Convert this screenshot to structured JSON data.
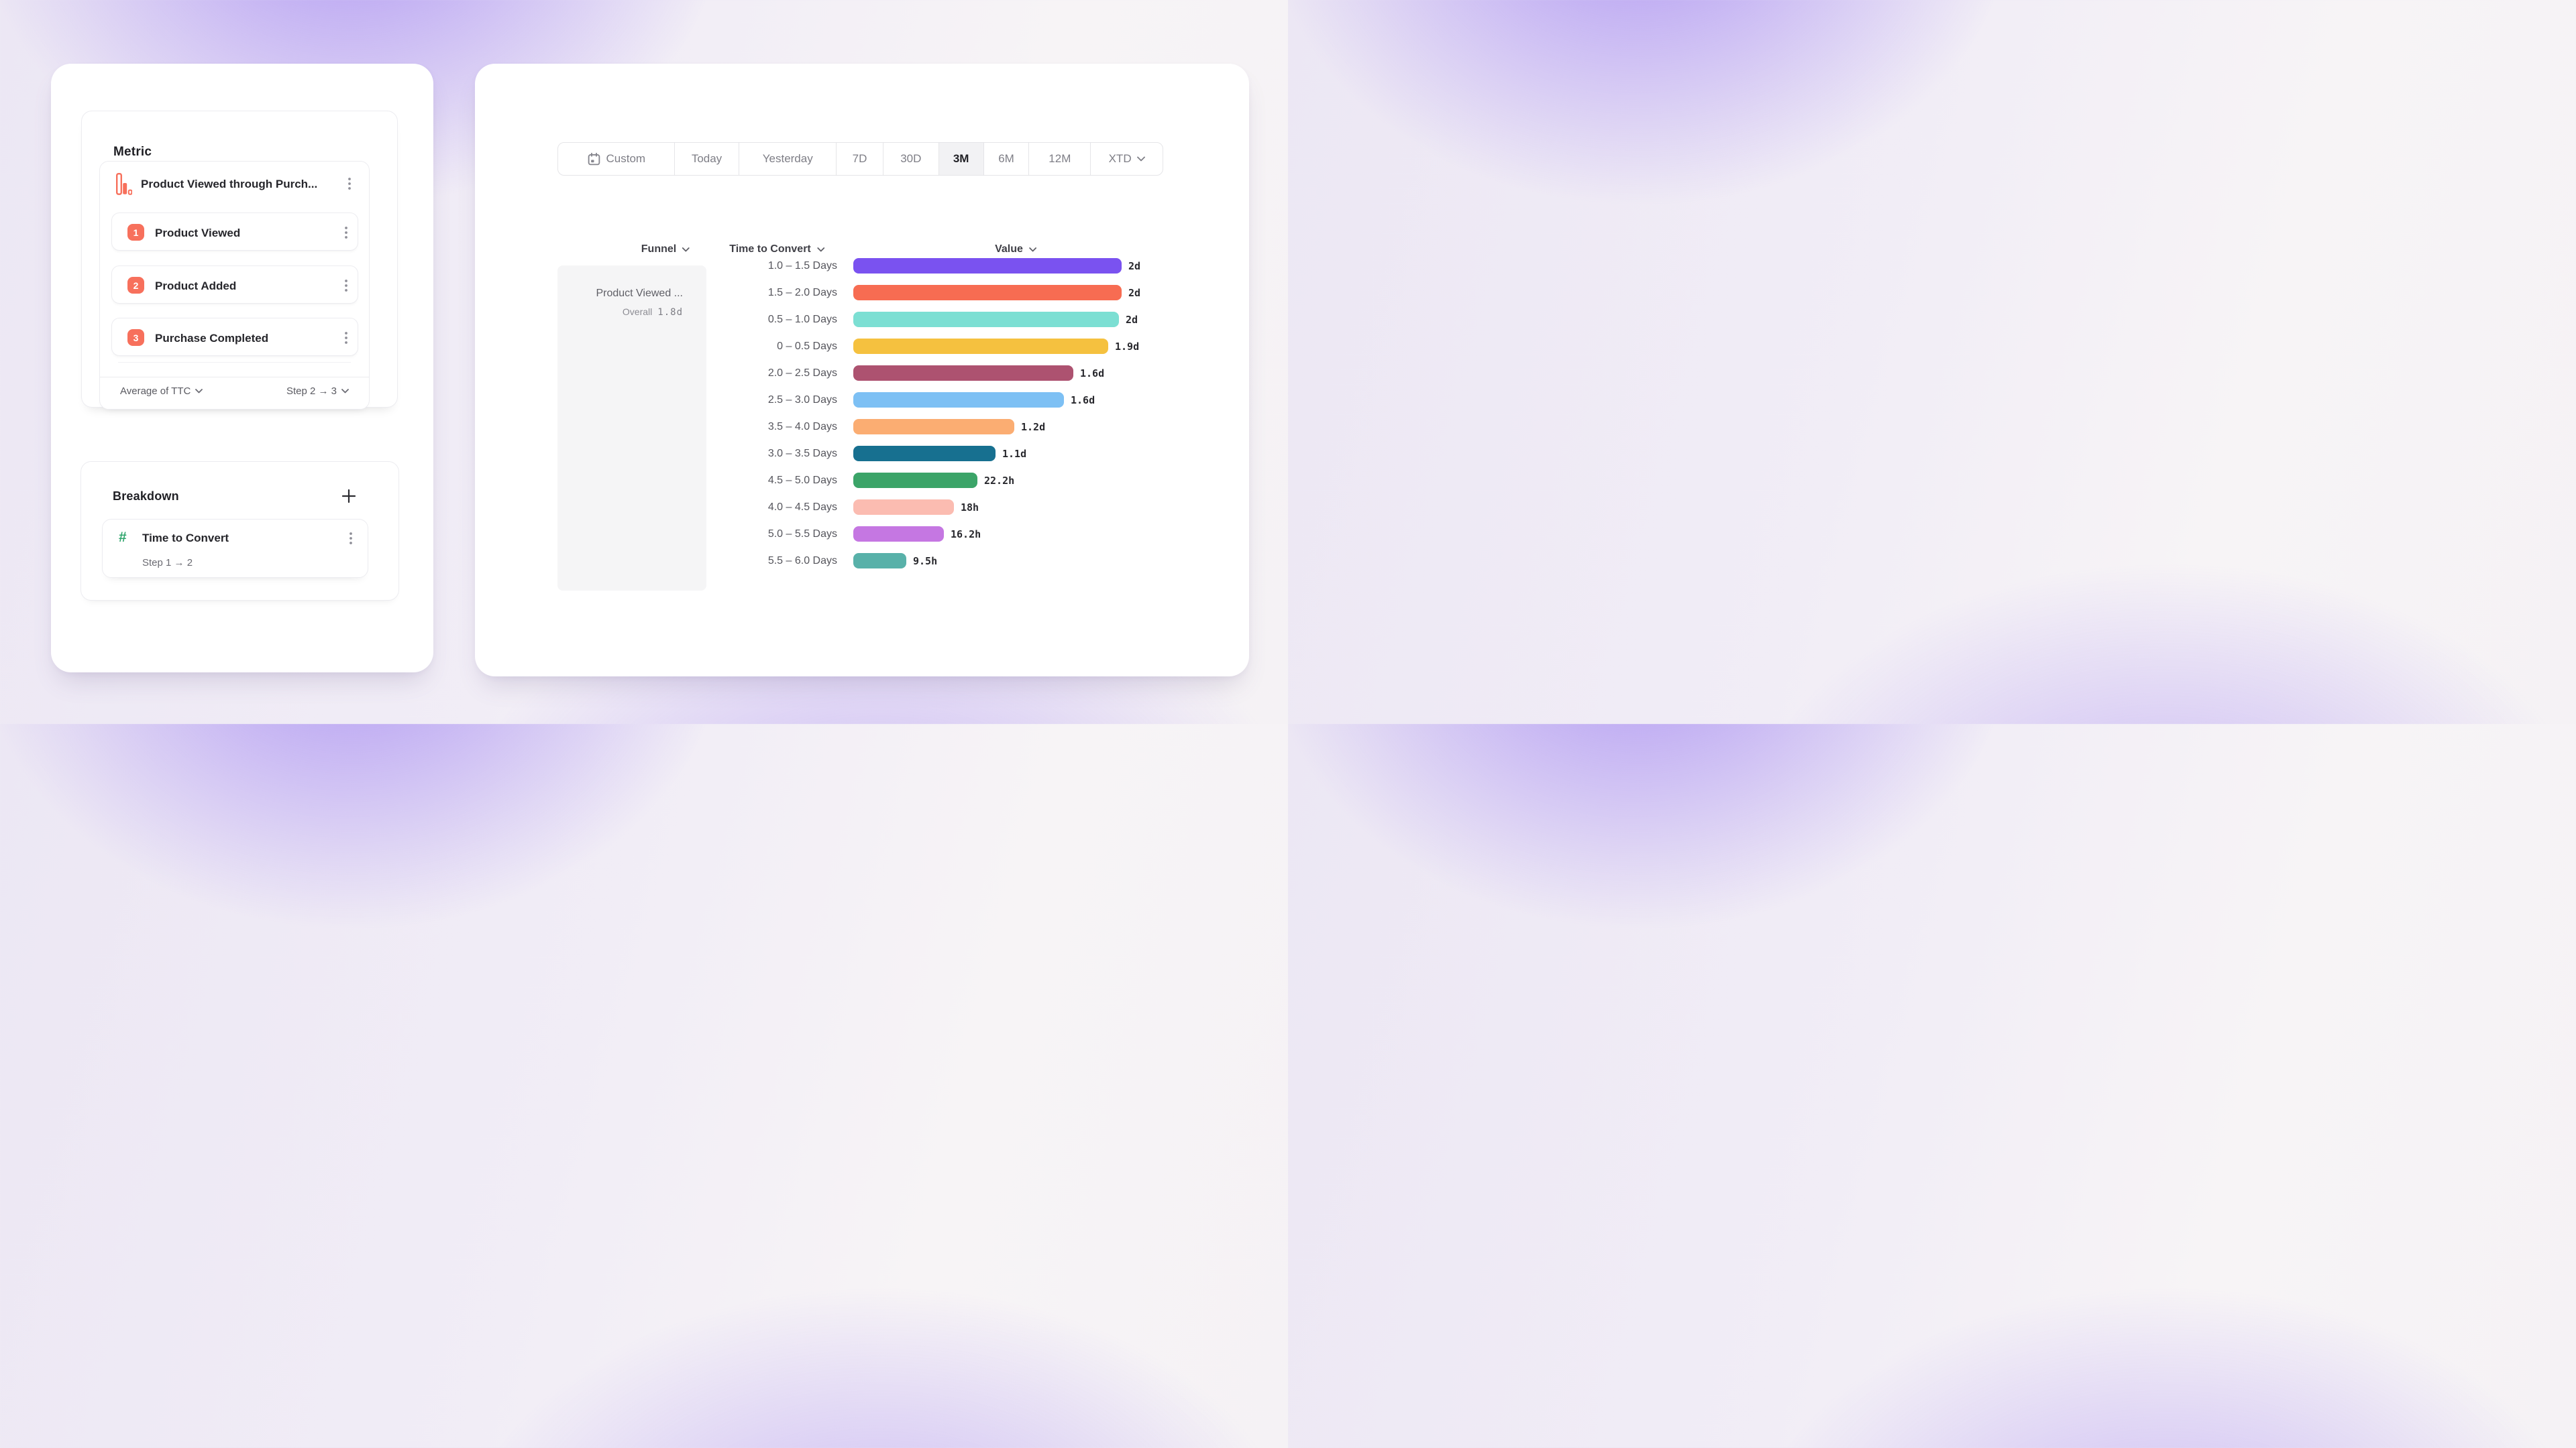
{
  "metric_panel": {
    "title": "Metric",
    "funnel": {
      "name": "Product Viewed through Purch...",
      "icon": "funnel-chart-icon",
      "steps": [
        {
          "num": "1",
          "label": "Product Viewed"
        },
        {
          "num": "2",
          "label": "Product Added"
        },
        {
          "num": "3",
          "label": "Purchase Completed"
        }
      ]
    },
    "footer": {
      "measure": "Average of TTC",
      "step_range": "Step 2 → 3"
    }
  },
  "breakdown_panel": {
    "title": "Breakdown",
    "add_icon": "plus-icon",
    "item": {
      "icon": "hash-icon",
      "name": "Time to Convert",
      "detail": "Step 1 → 2"
    }
  },
  "date_picker": {
    "selected": "3M",
    "options": [
      {
        "label": "Custom",
        "icon": "calendar-icon"
      },
      {
        "label": "Today"
      },
      {
        "label": "Yesterday"
      },
      {
        "label": "7D"
      },
      {
        "label": "30D"
      },
      {
        "label": "3M"
      },
      {
        "label": "6M"
      },
      {
        "label": "12M"
      },
      {
        "label": "XTD",
        "has_chevron": true
      }
    ]
  },
  "table": {
    "headers": {
      "funnel": "Funnel",
      "time_to_convert": "Time to Convert",
      "value": "Value"
    },
    "funnel_cell": {
      "name": "Product Viewed ...",
      "overall_label": "Overall",
      "overall_value": "1.8d"
    }
  },
  "chart_data": {
    "type": "bar",
    "orientation": "horizontal",
    "xlabel": "Value",
    "ylabel": "Time to Convert",
    "max_days": 2.0,
    "rows": [
      {
        "label": "1.0 – 1.5 Days",
        "value_label": "2d",
        "days": 2.0,
        "color": "#7A52F0"
      },
      {
        "label": "1.5 – 2.0 Days",
        "value_label": "2d",
        "days": 2.0,
        "color": "#F76C52"
      },
      {
        "label": "0.5 – 1.0 Days",
        "value_label": "2d",
        "days": 1.98,
        "color": "#7CDFD3"
      },
      {
        "label": "0 – 0.5 Days",
        "value_label": "1.9d",
        "days": 1.9,
        "color": "#F5C13F"
      },
      {
        "label": "2.0 – 2.5 Days",
        "value_label": "1.6d",
        "days": 1.64,
        "color": "#AD5270"
      },
      {
        "label": "2.5 – 3.0 Days",
        "value_label": "1.6d",
        "days": 1.57,
        "color": "#7DC0F4"
      },
      {
        "label": "3.5 – 4.0 Days",
        "value_label": "1.2d",
        "days": 1.2,
        "color": "#FBAD72"
      },
      {
        "label": "3.0 – 3.5 Days",
        "value_label": "1.1d",
        "days": 1.06,
        "color": "#177090"
      },
      {
        "label": "4.5 – 5.0 Days",
        "value_label": "22.2h",
        "days": 0.925,
        "color": "#3BA468"
      },
      {
        "label": "4.0 – 4.5 Days",
        "value_label": "18h",
        "days": 0.75,
        "color": "#FBBCB1"
      },
      {
        "label": "5.0 – 5.5 Days",
        "value_label": "16.2h",
        "days": 0.675,
        "color": "#C577E2"
      },
      {
        "label": "5.5 – 6.0 Days",
        "value_label": "9.5h",
        "days": 0.394,
        "color": "#58B1A9"
      }
    ]
  }
}
